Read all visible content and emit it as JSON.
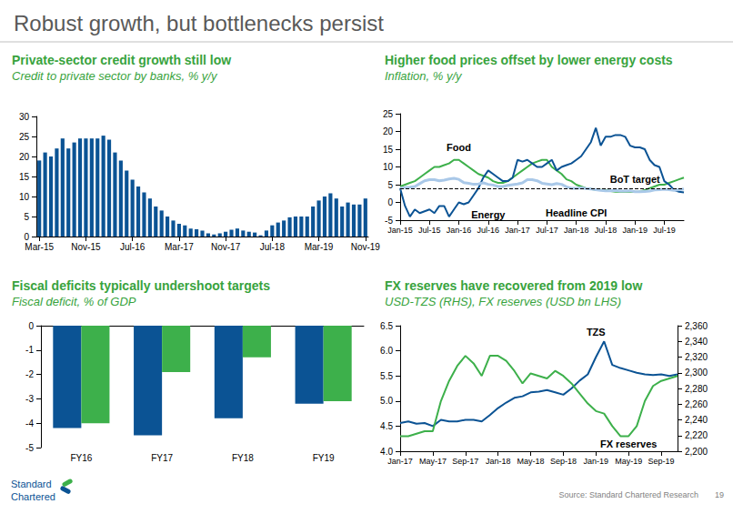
{
  "page": {
    "title": "Robust growth, but bottlenecks persist",
    "logo": [
      "Standard",
      "Chartered"
    ],
    "source": "Source: Standard Chartered Research",
    "page_number": 19
  },
  "chart_data": [
    {
      "type": "bar",
      "title": "Private-sector credit growth still low",
      "subtitle": "Credit to private sector by banks, % y/y",
      "categories": [
        "Mar-15",
        null,
        null,
        null,
        null,
        null,
        null,
        null,
        "Nov-15",
        null,
        null,
        null,
        null,
        null,
        null,
        null,
        "Jul-16",
        null,
        null,
        null,
        null,
        null,
        null,
        null,
        "Mar-17",
        null,
        null,
        null,
        null,
        null,
        null,
        null,
        "Nov-17",
        null,
        null,
        null,
        null,
        null,
        null,
        null,
        "Jul-18",
        null,
        null,
        null,
        null,
        null,
        null,
        null,
        "Mar-19",
        null,
        null,
        null,
        null,
        null,
        null,
        null,
        "Nov-19"
      ],
      "values": [
        19,
        21,
        20,
        22,
        24.5,
        22,
        23.5,
        24.5,
        24.5,
        24.5,
        24.5,
        25.2,
        24.2,
        21,
        19,
        16.5,
        14.2,
        12.5,
        11,
        9.5,
        7.5,
        6.5,
        5,
        4,
        3.2,
        2.8,
        2,
        1.8,
        1.5,
        0.8,
        0.5,
        0.8,
        1.2,
        1.7,
        2,
        1.5,
        1.2,
        1,
        0.3,
        1.5,
        2.8,
        3.5,
        4,
        4.8,
        5,
        5,
        5,
        7.5,
        9,
        10,
        10.8,
        9.5,
        7.5,
        8.5,
        8,
        8,
        9.5
      ],
      "color": "#0b5394",
      "ylim": [
        0,
        30
      ],
      "yticks": [
        0,
        5,
        10,
        15,
        20,
        25,
        30
      ],
      "grid": false
    },
    {
      "type": "line",
      "title": "Higher food prices offset by lower energy costs",
      "subtitle": "Inflation, % y/y",
      "categories": [
        "Jan-15",
        null,
        null,
        null,
        null,
        null,
        "Jul-15",
        null,
        null,
        null,
        null,
        null,
        "Jan-16",
        null,
        null,
        null,
        null,
        null,
        "Jul-16",
        null,
        null,
        null,
        null,
        null,
        "Jan-17",
        null,
        null,
        null,
        null,
        null,
        "Jul-17",
        null,
        null,
        null,
        null,
        null,
        "Jan-18",
        null,
        null,
        null,
        null,
        null,
        "Jul-18",
        null,
        null,
        null,
        null,
        null,
        "Jan-19",
        null,
        null,
        null,
        null,
        null,
        "Jul-19",
        null,
        null,
        null,
        null
      ],
      "series": [
        {
          "name": "Food",
          "color": "#3db04b",
          "label_at": {
            "x": "Jan-16",
            "y": 15.5
          },
          "values": [
            4.5,
            5,
            5.5,
            6,
            7,
            8,
            9,
            10,
            10,
            10.5,
            11,
            12,
            12,
            11,
            10,
            9,
            8,
            7.5,
            7,
            6,
            5.5,
            5.5,
            6,
            7,
            8,
            9,
            10,
            11,
            11.5,
            12,
            12,
            10,
            9,
            8,
            6.5,
            6,
            5,
            4.5,
            4,
            3.8,
            3.5,
            3.5,
            3.5,
            3.2,
            3,
            3,
            3,
            3,
            3,
            3,
            3.5,
            4,
            4.5,
            5,
            5,
            5.5,
            6,
            6.5,
            7
          ]
        },
        {
          "name": "Energy",
          "color": "#0b5394",
          "label_at": {
            "x": "Jul-16",
            "y": -3.5
          },
          "values": [
            4,
            -1,
            -4,
            -2,
            -3,
            -2.5,
            -2,
            -3,
            -1,
            -1,
            -4,
            -2,
            0,
            -0.5,
            0,
            2,
            4,
            7,
            9,
            8,
            7,
            6,
            6,
            7,
            12,
            11.5,
            12,
            11,
            10,
            10,
            11,
            12,
            9,
            10,
            10.5,
            11,
            12,
            13,
            15,
            17,
            21,
            16,
            18.5,
            18.5,
            19,
            19,
            18.5,
            16,
            15.5,
            15.5,
            15,
            12,
            10.5,
            10,
            6,
            5,
            3.5,
            3,
            2.8
          ]
        },
        {
          "name": "Headline CPI",
          "color": "#a9c8e8",
          "label_at": {
            "x": "Jan-18",
            "y": -3
          },
          "values": [
            4,
            4.2,
            4.3,
            4.5,
            5.3,
            6.1,
            6.4,
            6.4,
            6.1,
            6.3,
            6.6,
            6.8,
            6.5,
            5.6,
            5.4,
            5.1,
            5.2,
            5.5,
            5.1,
            4.9,
            4.5,
            4.5,
            4.8,
            5,
            5.2,
            5.5,
            6.4,
            6.4,
            6.1,
            5.4,
            5.2,
            5,
            5.3,
            5.1,
            4.4,
            4,
            4,
            4.1,
            3.9,
            3.8,
            3.6,
            3.4,
            3.3,
            3.3,
            3.4,
            3.2,
            3.2,
            3.3,
            3,
            3,
            3.1,
            3.2,
            3.5,
            3.6,
            3.7,
            3.6,
            3.4,
            3.6,
            3.8
          ]
        }
      ],
      "reference_line": {
        "name": "BoT target",
        "value": 4,
        "color": "#000000",
        "line_style": "dashed",
        "label_at": {
          "x": "Jan-19",
          "y": 6.5
        }
      },
      "ylim": [
        -5,
        25
      ],
      "yticks": [
        -5,
        0,
        5,
        10,
        15,
        20,
        25
      ],
      "grid": false
    },
    {
      "type": "bar",
      "title": "Fiscal deficits typically undershoot targets",
      "subtitle": "Fiscal deficit, % of GDP",
      "categories": [
        "FY16",
        "FY17",
        "FY18",
        "FY19"
      ],
      "series": [
        {
          "color": "#0b5394",
          "values": [
            -4.2,
            -4.5,
            -3.8,
            -3.2
          ]
        },
        {
          "color": "#3db04b",
          "values": [
            -4.0,
            -1.9,
            -1.3,
            -3.1
          ]
        }
      ],
      "ylim": [
        -5,
        0
      ],
      "yticks": [
        -5,
        -4,
        -3,
        -2,
        -1,
        0
      ],
      "grid": false
    },
    {
      "type": "line",
      "title": "FX reserves have recovered from 2019 low",
      "subtitle": "USD-TZS (RHS), FX reserves (USD bn LHS)",
      "categories": [
        "Jan-17",
        null,
        null,
        null,
        "May-17",
        null,
        null,
        null,
        "Sep-17",
        null,
        null,
        null,
        "Jan-18",
        null,
        null,
        null,
        "May-18",
        null,
        null,
        null,
        "Sep-18",
        null,
        null,
        null,
        "Jan-19",
        null,
        null,
        null,
        "May-19",
        null,
        null,
        null,
        "Sep-19",
        null,
        null
      ],
      "series": [
        {
          "name": "TZS",
          "axis": "y2",
          "color": "#0b5394",
          "label_at": {
            "x": "Jan-19",
            "y": 2352
          },
          "values": [
            2236,
            2238,
            2235,
            2236,
            2232,
            2240,
            2238,
            2238,
            2240,
            2240,
            2238,
            2246,
            2255,
            2262,
            2268,
            2270,
            2275,
            2276,
            2278,
            2275,
            2272,
            2280,
            2290,
            2298,
            2320,
            2340,
            2310,
            2306,
            2303,
            2300,
            2298,
            2297,
            2298,
            2296,
            2298
          ]
        },
        {
          "name": "FX reserves",
          "color": "#3db04b",
          "label_at": {
            "x": "May-19",
            "y": 4.15
          },
          "values": [
            4.3,
            4.3,
            4.35,
            4.4,
            4.4,
            5.0,
            5.4,
            5.7,
            5.9,
            5.75,
            5.5,
            5.9,
            5.9,
            5.8,
            5.6,
            5.35,
            5.55,
            5.5,
            5.45,
            5.6,
            5.5,
            5.35,
            5.15,
            4.95,
            4.8,
            4.75,
            4.5,
            4.3,
            4.3,
            4.5,
            5.0,
            5.3,
            5.4,
            5.45,
            5.5
          ]
        }
      ],
      "ylim": [
        4,
        6.5
      ],
      "yticks": [
        {
          "value": 4,
          "label": "4.0"
        },
        {
          "value": 4.5,
          "label": "4.5"
        },
        {
          "value": 5,
          "label": "5.0"
        },
        {
          "value": 5.5,
          "label": "5.5"
        },
        {
          "value": 6,
          "label": "6.0"
        },
        {
          "value": 6.5,
          "label": "6.5"
        }
      ],
      "y2lim": [
        2200,
        2360
      ],
      "y2ticks": [
        {
          "value": 2200,
          "label": "2,200"
        },
        {
          "value": 2220,
          "label": "2,220"
        },
        {
          "value": 2240,
          "label": "2,240"
        },
        {
          "value": 2260,
          "label": "2,260"
        },
        {
          "value": 2280,
          "label": "2,280"
        },
        {
          "value": 2300,
          "label": "2,300"
        },
        {
          "value": 2320,
          "label": "2,320"
        },
        {
          "value": 2340,
          "label": "2,340"
        },
        {
          "value": 2360,
          "label": "2,360"
        }
      ],
      "grid": false
    }
  ]
}
